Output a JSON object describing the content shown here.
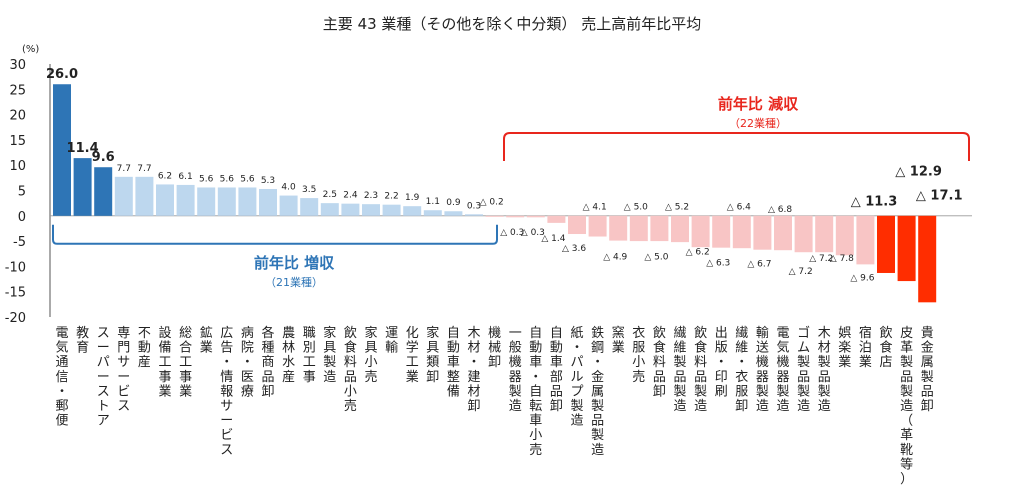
{
  "chart_data": {
    "type": "bar",
    "title": "主要 43 業種（その他を除く中分類） 売上高前年比平均",
    "ylabel": "(%)",
    "ylim": [
      -20,
      30
    ],
    "yticks": [
      "30",
      "25",
      "20",
      "15",
      "10",
      "5",
      "0",
      "-5",
      "-10",
      "-15",
      "-20"
    ],
    "grid": false,
    "categories": [
      "電気通信・郵便",
      "教育",
      "スーパーストア",
      "専門サービス",
      "不動産",
      "設備工事業",
      "総合工事業",
      "鉱業",
      "広告・情報サービス",
      "病院・医療",
      "各種商品卸",
      "農林水産",
      "職別工事",
      "家具製造",
      "飲食料品小売",
      "家具小売",
      "運輸",
      "化学工業",
      "家具類卸",
      "自動車整備",
      "木材・建材卸",
      "機械卸",
      "一般機器製造",
      "自動車・自転車小売",
      "自動車部品卸",
      "紙・パルプ製造",
      "鉄鋼・金属製品製造",
      "窯業",
      "衣服小売",
      "飲食料品卸",
      "繊維製品製造",
      "飲食料品製造",
      "出版・印刷",
      "繊維・衣服卸",
      "輸送機器製造",
      "電気機器製造",
      "ゴム製品製造",
      "木材製品製造",
      "娯楽業",
      "宿泊業",
      "飲食店",
      "皮革製品製造（革靴等）",
      "貴金属製品卸"
    ],
    "values": [
      26.0,
      11.4,
      9.6,
      7.7,
      7.7,
      6.2,
      6.1,
      5.6,
      5.6,
      5.6,
      5.3,
      4.0,
      3.5,
      2.5,
      2.4,
      2.3,
      2.2,
      1.9,
      1.1,
      0.9,
      0.3,
      -0.2,
      -0.3,
      -0.3,
      -1.4,
      -3.6,
      -4.1,
      -4.9,
      -5.0,
      -5.0,
      -5.2,
      -6.2,
      -6.3,
      -6.4,
      -6.7,
      -6.8,
      -7.2,
      -7.2,
      -7.8,
      -9.6,
      -11.3,
      -12.9,
      -17.1
    ],
    "value_labels": [
      "26.0",
      "11.4",
      "9.6",
      "7.7",
      "7.7",
      "6.2",
      "6.1",
      "5.6",
      "5.6",
      "5.6",
      "5.3",
      "4.0",
      "3.5",
      "2.5",
      "2.4",
      "2.3",
      "2.2",
      "1.9",
      "1.1",
      "0.9",
      "0.3",
      "△ 0.2",
      "△ 0.3",
      "△ 0.3",
      "△ 1.4",
      "△ 3.6",
      "△ 4.1",
      "△ 4.9",
      "△ 5.0",
      "△ 5.0",
      "△ 5.2",
      "△ 6.2",
      "△ 6.3",
      "△ 6.4",
      "△ 6.7",
      "△ 6.8",
      "△ 7.2",
      "△ 7.2",
      "△ 7.8",
      "△ 9.6",
      "△ 11.3",
      "△ 12.9",
      "△ 17.1"
    ],
    "highlight_labels": [
      0,
      1,
      2,
      40,
      41,
      42
    ],
    "colors": {
      "top_increase": "#2e75b6",
      "increase": "#bdd7ee",
      "decrease": "#f8c5c5",
      "top_decrease": "#ff2d00",
      "increase_annotation": "#2e75b6",
      "decrease_annotation": "#e8261d"
    },
    "annotations": {
      "increase": {
        "title": "前年比 増収",
        "subtitle": "（21業種）"
      },
      "decrease": {
        "title": "前年比 減収",
        "subtitle": "（22業種）"
      }
    }
  }
}
